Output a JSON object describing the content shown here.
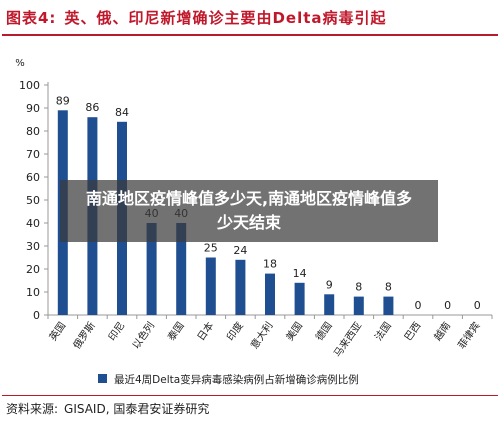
{
  "header": {
    "figure_label": "图表4:",
    "title": "英、俄、印尼新增确诊主要由Delta病毒引起"
  },
  "chart_data": {
    "type": "bar",
    "unit_label": "%",
    "categories": [
      "英国",
      "俄罗斯",
      "印尼",
      "以色列",
      "泰国",
      "日本",
      "印度",
      "意大利",
      "美国",
      "德国",
      "马来西亚",
      "法国",
      "巴西",
      "越南",
      "菲律宾"
    ],
    "values": [
      89,
      86,
      84,
      40,
      40,
      25,
      24,
      18,
      14,
      9,
      8,
      8,
      0,
      0,
      0
    ],
    "ylim": [
      0,
      100
    ],
    "yticks": [
      0,
      10,
      20,
      30,
      40,
      50,
      60,
      70,
      80,
      90,
      100
    ],
    "legend": "最近4周Delta变异病毒感染病例占新增确诊病例比例",
    "legend_position": "bottom",
    "bar_color": "#1f4e91",
    "grid": false
  },
  "footer": {
    "source_label": "资料来源:",
    "source_text": "GISAID, 国泰君安证券研究"
  },
  "overlay": {
    "text": "南通地区疫情峰值多少天,南通地区疫情峰值多少天结束"
  }
}
